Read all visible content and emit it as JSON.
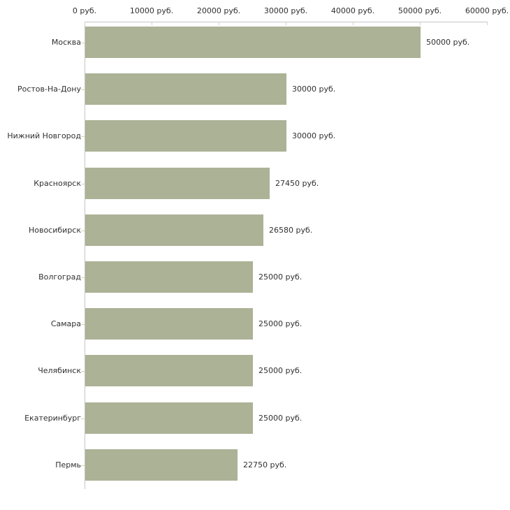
{
  "chart_data": {
    "type": "bar",
    "orientation": "horizontal",
    "title": "",
    "xlabel": "",
    "ylabel": "",
    "unit": "руб.",
    "categories": [
      "Москва",
      "Ростов-На-Дону",
      "Нижний Новгород",
      "Красноярск",
      "Новосибирск",
      "Волгоград",
      "Самара",
      "Челябинск",
      "Екатеринбург",
      "Пермь"
    ],
    "values": [
      50000,
      30000,
      30000,
      27450,
      26580,
      25000,
      25000,
      25000,
      25000,
      22750
    ],
    "value_labels": [
      "50000 руб.",
      "30000 руб.",
      "30000 руб.",
      "27450 руб.",
      "26580 руб.",
      "25000 руб.",
      "25000 руб.",
      "25000 руб.",
      "25000 руб.",
      "22750 руб."
    ],
    "xlim": [
      0,
      60000
    ],
    "x_ticks": [
      0,
      10000,
      20000,
      30000,
      40000,
      50000,
      60000
    ],
    "x_tick_labels": [
      "0 руб.",
      "10000 руб.",
      "20000 руб.",
      "30000 руб.",
      "40000 руб.",
      "50000 руб.",
      "60000 руб."
    ],
    "grid": false,
    "legend": false,
    "axis_position": "top",
    "colors": {
      "bar": "#acb296",
      "axis": "#c6c6c6",
      "tick": "#d4d4b4",
      "text": "#303030",
      "background": "#ffffff"
    }
  }
}
